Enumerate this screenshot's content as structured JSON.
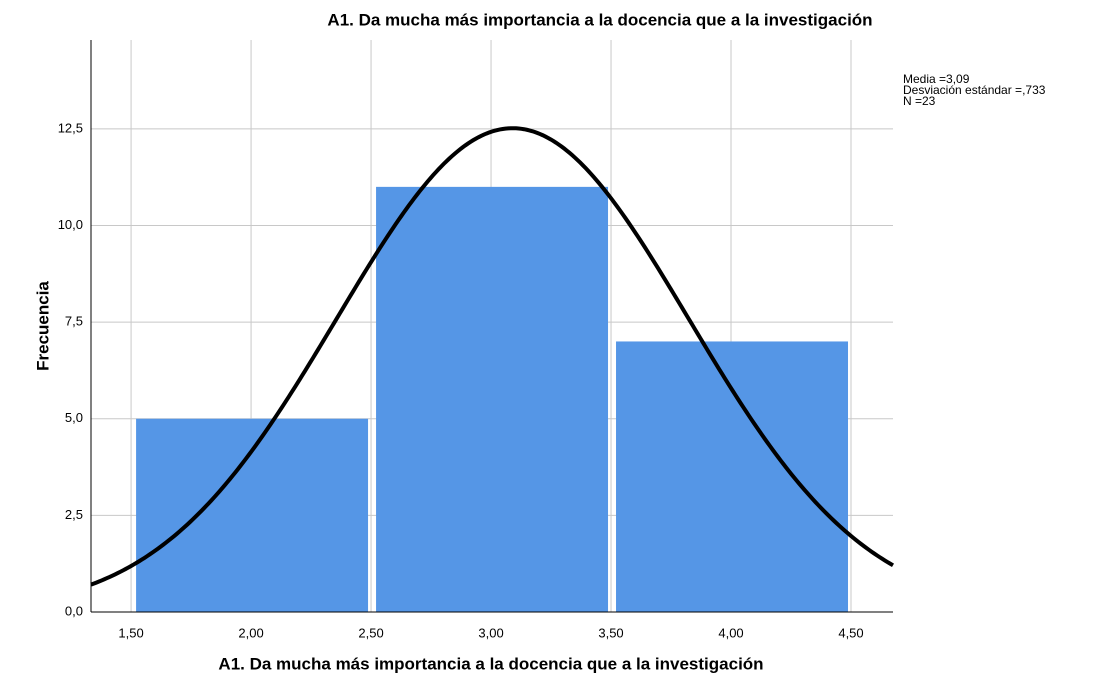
{
  "chart_data": {
    "type": "histogram",
    "title": "A1. Da mucha más importancia a la docencia que a la investigación",
    "x_label": "A1. Da mucha más importancia a la docencia que a la investigación",
    "y_label": "Frecuencia",
    "bins": [
      1.5,
      2.5,
      3.5,
      4.5
    ],
    "values": [
      5,
      11,
      7
    ],
    "color": "#5596e6",
    "curve_color": "#000000",
    "xlim": [
      1.333,
      4.675
    ],
    "ylim": [
      0,
      14.8
    ],
    "xticks": [
      {
        "value": 1.5,
        "label": "1,50"
      },
      {
        "value": 2.0,
        "label": "2,00"
      },
      {
        "value": 2.5,
        "label": "2,50"
      },
      {
        "value": 3.0,
        "label": "3,00"
      },
      {
        "value": 3.5,
        "label": "3,50"
      },
      {
        "value": 4.0,
        "label": "4,00"
      },
      {
        "value": 4.5,
        "label": "4,50"
      }
    ],
    "yticks": [
      {
        "value": 0,
        "label": "0,0"
      },
      {
        "value": 2.5,
        "label": "2,5"
      },
      {
        "value": 5,
        "label": "5,0"
      },
      {
        "value": 7.5,
        "label": "7,5"
      },
      {
        "value": 10,
        "label": "10,0"
      },
      {
        "value": 12.5,
        "label": "12,5"
      }
    ],
    "grid": true,
    "stats": [
      {
        "label": "Media =3,09",
        "value": 3.09
      },
      {
        "label": "Desviación estándar =,733",
        "value": 0.733
      },
      {
        "label": "N =23",
        "value": 23
      }
    ]
  }
}
